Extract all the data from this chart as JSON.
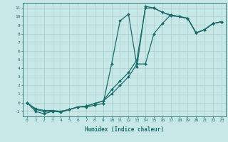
{
  "xlabel": "Humidex (Indice chaleur)",
  "bg_color": "#c8e8e8",
  "line_color": "#1a6b6b",
  "grid_color": "#c0d8d8",
  "xlim": [
    -0.5,
    23.5
  ],
  "ylim": [
    -1.6,
    11.6
  ],
  "xticks": [
    0,
    1,
    2,
    3,
    4,
    5,
    6,
    7,
    8,
    9,
    10,
    11,
    12,
    13,
    14,
    15,
    16,
    17,
    18,
    19,
    20,
    21,
    22,
    23
  ],
  "yticks": [
    -1,
    0,
    1,
    2,
    3,
    4,
    5,
    6,
    7,
    8,
    9,
    10,
    11
  ],
  "line1_x": [
    0,
    1,
    2,
    3,
    4,
    5,
    6,
    7,
    8,
    9,
    10,
    11,
    12,
    13,
    14,
    15,
    16,
    17,
    18,
    19,
    20,
    21,
    22,
    23
  ],
  "line1_y": [
    0.0,
    -1.0,
    -1.3,
    -1.0,
    -1.1,
    -0.8,
    -0.5,
    -0.5,
    -0.3,
    -0.1,
    4.5,
    9.5,
    10.3,
    4.2,
    11.2,
    11.0,
    10.5,
    10.1,
    10.0,
    9.8,
    8.1,
    8.5,
    9.2,
    9.4
  ],
  "line2_x": [
    0,
    1,
    2,
    3,
    4,
    5,
    6,
    7,
    8,
    9,
    10,
    11,
    12,
    13,
    14,
    15,
    16,
    17,
    18,
    19,
    20,
    21,
    22,
    23
  ],
  "line2_y": [
    0.0,
    -0.8,
    -1.0,
    -1.0,
    -1.0,
    -0.8,
    -0.5,
    -0.4,
    -0.1,
    0.2,
    1.5,
    2.5,
    3.5,
    5.0,
    11.0,
    11.0,
    10.5,
    10.2,
    10.0,
    9.8,
    8.1,
    8.5,
    9.2,
    9.4
  ],
  "line3_x": [
    0,
    1,
    2,
    3,
    4,
    5,
    6,
    7,
    8,
    9,
    10,
    11,
    12,
    13,
    14,
    15,
    16,
    17,
    18,
    19,
    20,
    21,
    22,
    23
  ],
  "line3_y": [
    0.0,
    -0.7,
    -0.9,
    -0.9,
    -1.0,
    -0.8,
    -0.5,
    -0.4,
    -0.1,
    0.2,
    1.0,
    2.0,
    3.0,
    4.5,
    4.5,
    8.0,
    9.2,
    10.2,
    10.0,
    9.8,
    8.1,
    8.5,
    9.2,
    9.4
  ]
}
